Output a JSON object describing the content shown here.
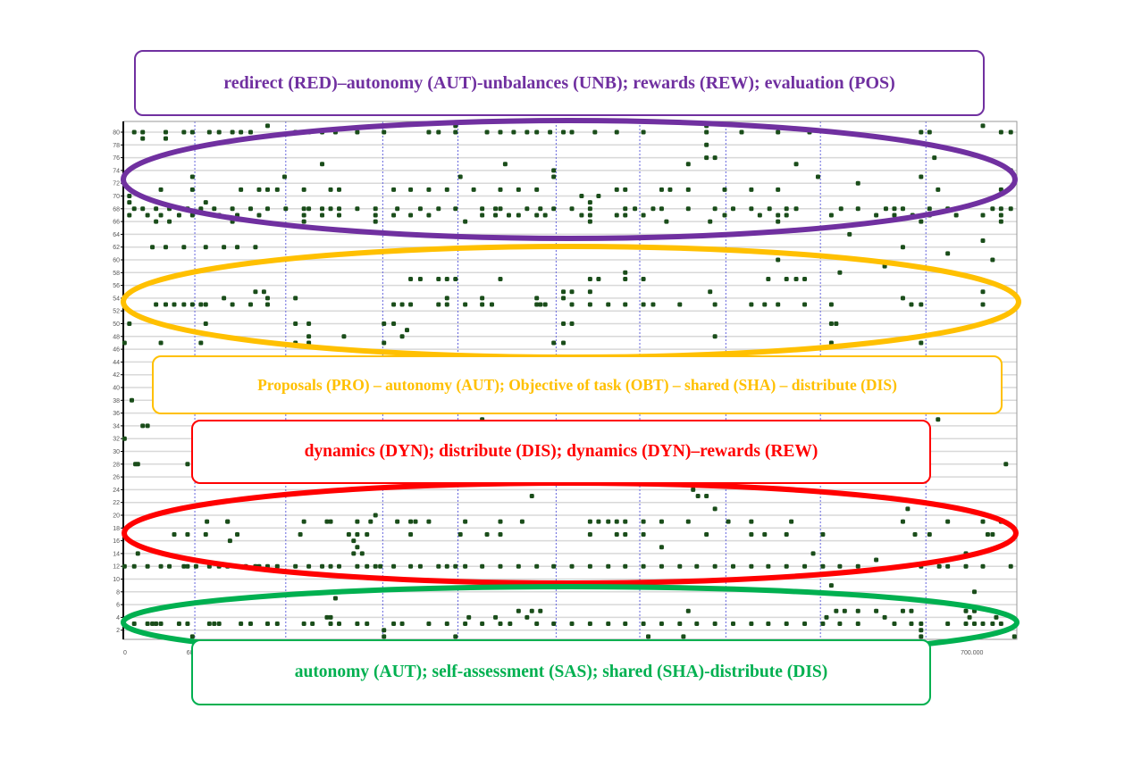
{
  "annotations": {
    "purple": "redirect (RED)–autonomy (AUT)-unbalances (UNB); rewards (REW); evaluation (POS)",
    "yellow": "Proposals (PRO) – autonomy (AUT); Objective of task (OBT) – shared (SHA) – distribute (DIS)",
    "red": "dynamics (DYN); distribute (DIS); dynamics (DYN)–rewards (REW)",
    "green": "autonomy (AUT); self-assessment (SAS); shared (SHA)-distribute (DIS)"
  },
  "colors": {
    "purple": "#7030a0",
    "yellow": "#ffc000",
    "red": "#ff0000",
    "green": "#00b050",
    "point": "#1a4d1a",
    "segment": "#6666dd"
  },
  "chart_data": {
    "type": "scatter",
    "title": "",
    "xlabel": "",
    "ylabel": "",
    "xlim": [
      0,
      737
    ],
    "ylim": [
      0.5,
      81.5
    ],
    "x_tick_labels": [
      {
        "value": 0,
        "label": "0"
      },
      {
        "value": 60,
        "label": "60.000"
      },
      {
        "value": 700,
        "label": "700.000"
      }
    ],
    "y_ticks": [
      2,
      4,
      6,
      8,
      10,
      12,
      14,
      16,
      18,
      20,
      22,
      24,
      26,
      28,
      30,
      32,
      34,
      36,
      38,
      40,
      42,
      44,
      46,
      48,
      50,
      52,
      54,
      56,
      58,
      60,
      62,
      64,
      66,
      68,
      70,
      72,
      74,
      76,
      78,
      80
    ],
    "grid": true,
    "segment_boundaries": [
      59,
      134,
      214,
      276,
      357,
      426,
      497,
      575,
      662
    ],
    "highlight_bands": [
      {
        "color": "purple",
        "y_range": [
          64,
          81
        ]
      },
      {
        "color": "yellow",
        "y_range": [
          46,
          62
        ]
      },
      {
        "color": "red",
        "y_range": [
          10,
          24
        ]
      },
      {
        "color": "green",
        "y_range": [
          1,
          8
        ]
      }
    ],
    "rows": [
      {
        "y": 81,
        "x": [
          119,
          274,
          481,
          709
        ]
      },
      {
        "y": 80,
        "x": [
          9,
          16,
          35,
          50,
          57,
          71,
          79,
          90,
          97,
          105,
          142,
          153,
          164,
          175,
          193,
          215,
          252,
          260,
          274,
          300,
          311,
          322,
          333,
          341,
          352,
          363,
          370,
          389,
          407,
          429,
          481,
          510,
          540,
          566,
          658,
          665,
          724,
          732
        ]
      },
      {
        "y": 79,
        "x": [
          16,
          35
        ]
      },
      {
        "y": 78,
        "x": [
          481
        ]
      },
      {
        "y": 76,
        "x": [
          481,
          488,
          669
        ]
      },
      {
        "y": 75,
        "x": [
          164,
          315,
          466,
          555
        ]
      },
      {
        "y": 74,
        "x": [
          355,
          732
        ]
      },
      {
        "y": 73,
        "x": [
          57,
          133,
          278,
          355,
          573,
          658
        ]
      },
      {
        "y": 72,
        "x": [
          606
        ]
      },
      {
        "y": 71,
        "x": [
          31,
          57,
          97,
          112,
          119,
          127,
          149,
          171,
          178,
          223,
          237,
          252,
          267,
          289,
          311,
          326,
          341,
          407,
          414,
          444,
          451,
          466,
          496,
          518,
          540,
          672,
          724
        ]
      },
      {
        "y": 70,
        "x": [
          5,
          378,
          392
        ]
      },
      {
        "y": 69,
        "x": [
          5,
          68,
          385
        ]
      },
      {
        "y": 68,
        "x": [
          9,
          16,
          27,
          38,
          53,
          64,
          75,
          90,
          105,
          119,
          134,
          149,
          153,
          164,
          171,
          178,
          193,
          208,
          226,
          245,
          260,
          274,
          296,
          307,
          311,
          333,
          344,
          355,
          370,
          385,
          414,
          422,
          437,
          444,
          466,
          488,
          503,
          518,
          533,
          547,
          555,
          592,
          606,
          629,
          636,
          643,
          665,
          680,
          717,
          724,
          732
        ]
      },
      {
        "y": 67,
        "x": [
          5,
          20,
          31,
          46,
          57,
          79,
          94,
          112,
          149,
          164,
          178,
          208,
          223,
          237,
          252,
          296,
          307,
          318,
          326,
          341,
          348,
          378,
          385,
          407,
          414,
          429,
          496,
          525,
          540,
          547,
          584,
          621,
          636,
          651,
          665,
          687,
          709,
          724
        ]
      },
      {
        "y": 66,
        "x": [
          27,
          38,
          90,
          149,
          208,
          282,
          385,
          448,
          484,
          540,
          658,
          724
        ]
      },
      {
        "y": 64,
        "x": [
          599
        ]
      },
      {
        "y": 63,
        "x": [
          709
        ]
      },
      {
        "y": 62,
        "x": [
          24,
          35,
          50,
          68,
          83,
          94,
          109,
          643
        ]
      },
      {
        "y": 61,
        "x": [
          680
        ]
      },
      {
        "y": 60,
        "x": [
          540,
          717
        ]
      },
      {
        "y": 59,
        "x": [
          628
        ]
      },
      {
        "y": 58,
        "x": [
          414,
          591
        ]
      },
      {
        "y": 57,
        "x": [
          237,
          245,
          260,
          267,
          274,
          311,
          385,
          392,
          414,
          429,
          532,
          547,
          555,
          562
        ]
      },
      {
        "y": 55,
        "x": [
          109,
          116,
          363,
          370,
          385,
          484,
          709
        ]
      },
      {
        "y": 54,
        "x": [
          83,
          119,
          142,
          267,
          296,
          341,
          363,
          643
        ]
      },
      {
        "y": 53,
        "x": [
          27,
          35,
          42,
          50,
          57,
          64,
          68,
          90,
          105,
          119,
          223,
          230,
          237,
          260,
          267,
          282,
          296,
          304,
          341,
          344,
          348,
          370,
          385,
          400,
          414,
          429,
          437,
          459,
          488,
          518,
          529,
          540,
          562,
          584,
          650,
          658,
          709
        ]
      },
      {
        "y": 50,
        "x": [
          5,
          68,
          142,
          153,
          215,
          223,
          363,
          370,
          584,
          588
        ]
      },
      {
        "y": 49,
        "x": [
          234
        ]
      },
      {
        "y": 48,
        "x": [
          153,
          182,
          230,
          488
        ]
      },
      {
        "y": 47,
        "x": [
          1,
          31,
          64,
          142,
          153,
          215,
          355,
          363,
          584,
          658
        ]
      },
      {
        "y": 38,
        "x": [
          7
        ]
      },
      {
        "y": 35,
        "x": [
          296,
          672
        ]
      },
      {
        "y": 34,
        "x": [
          16,
          20
        ]
      },
      {
        "y": 32,
        "x": [
          1
        ]
      },
      {
        "y": 28,
        "x": [
          10,
          12,
          53,
          728
        ]
      },
      {
        "y": 24,
        "x": [
          470
        ]
      },
      {
        "y": 23,
        "x": [
          337,
          474,
          481
        ]
      },
      {
        "y": 21,
        "x": [
          488,
          647
        ]
      },
      {
        "y": 20,
        "x": [
          208
        ]
      },
      {
        "y": 19,
        "x": [
          69,
          86,
          86,
          149,
          168,
          171,
          193,
          204,
          226,
          237,
          241,
          252,
          282,
          311,
          329,
          385,
          392,
          400,
          407,
          414,
          429,
          444,
          466,
          499,
          518,
          551,
          643,
          680,
          709,
          724
        ]
      },
      {
        "y": 17,
        "x": [
          42,
          53,
          68,
          94,
          146,
          186,
          193,
          201,
          237,
          278,
          300,
          311,
          385,
          407,
          414,
          429,
          481,
          518,
          529,
          547,
          577,
          653,
          665,
          713,
          717
        ]
      },
      {
        "y": 16,
        "x": [
          88,
          190
        ]
      },
      {
        "y": 15,
        "x": [
          193,
          444
        ]
      },
      {
        "y": 14,
        "x": [
          12,
          190,
          197,
          569,
          695
        ]
      },
      {
        "y": 13,
        "x": [
          621
        ]
      },
      {
        "y": 12,
        "x": [
          1,
          9,
          20,
          31,
          38,
          50,
          53,
          60,
          71,
          79,
          86,
          94,
          101,
          109,
          112,
          119,
          127,
          142,
          153,
          164,
          171,
          178,
          193,
          201,
          208,
          212,
          223,
          237,
          245,
          260,
          267,
          274,
          282,
          296,
          311,
          326,
          341,
          355,
          370,
          385,
          400,
          414,
          429,
          444,
          459,
          473,
          488,
          503,
          518,
          532,
          547,
          562,
          577,
          591,
          606,
          658,
          673,
          680,
          695,
          709,
          732
        ]
      },
      {
        "y": 9,
        "x": [
          584
        ]
      },
      {
        "y": 8,
        "x": [
          702
        ]
      },
      {
        "y": 7,
        "x": [
          175
        ]
      },
      {
        "y": 5,
        "x": [
          326,
          337,
          344,
          466,
          588,
          595,
          606,
          621,
          643,
          650,
          695,
          702
        ]
      },
      {
        "y": 4,
        "x": [
          168,
          171,
          285,
          307,
          333,
          580,
          628,
          698,
          720
        ]
      },
      {
        "y": 3,
        "x": [
          9,
          20,
          24,
          27,
          31,
          46,
          53,
          71,
          75,
          79,
          97,
          105,
          119,
          127,
          149,
          156,
          171,
          178,
          193,
          201,
          223,
          230,
          252,
          267,
          282,
          296,
          311,
          319,
          341,
          355,
          370,
          385,
          400,
          414,
          429,
          444,
          459,
          473,
          488,
          503,
          518,
          532,
          547,
          562,
          577,
          591,
          606,
          636,
          650,
          658,
          680,
          695,
          702,
          709,
          717,
          724
        ]
      },
      {
        "y": 2,
        "x": [
          215,
          658
        ]
      },
      {
        "y": 1,
        "x": [
          57,
          215,
          274,
          433,
          462,
          658,
          735
        ]
      }
    ]
  }
}
